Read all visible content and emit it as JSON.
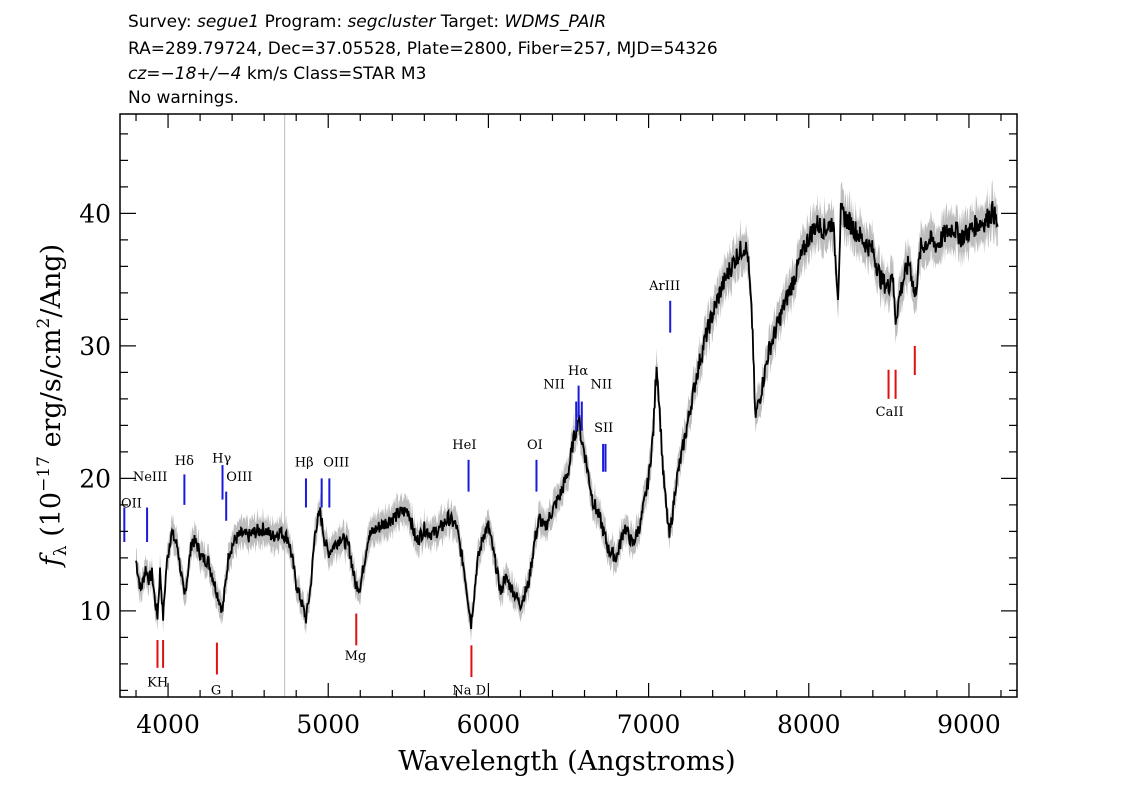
{
  "header": {
    "line1": {
      "survey_label": "Survey: ",
      "survey": "segue1",
      "program_label": " Program: ",
      "program": "segcluster",
      "target_label": " Target: ",
      "target": "WDMS_PAIR"
    },
    "line2": "RA=289.79724, Dec=37.05528, Plate=2800, Fiber=257, MJD=54326",
    "line3": {
      "cz_label": "cz",
      "cz_value": "=−18+/−4",
      "cz_unit": " km/s Class=STAR M3"
    },
    "line4": "No warnings."
  },
  "chart_data": {
    "type": "line",
    "xlabel": "Wavelength (Angstroms)",
    "ylabel_symbol": "f",
    "ylabel_sub": "λ",
    "ylabel_mid": " (10",
    "ylabel_exp": "−17",
    "ylabel_tail1": " erg/s/cm",
    "ylabel_exp2": "2",
    "ylabel_tail2": "/Ang)",
    "xlim": [
      3700,
      9300
    ],
    "ylim": [
      3.5,
      47.5
    ],
    "x_ticks": [
      4000,
      5000,
      6000,
      7000,
      8000,
      9000
    ],
    "x_tick_labels": [
      "4000",
      "5000",
      "6000",
      "7000",
      "8000",
      "9000"
    ],
    "y_ticks": [
      10,
      20,
      30,
      40
    ],
    "y_tick_labels": [
      "10",
      "20",
      "30",
      "40"
    ],
    "vertical_marker": 4728,
    "colors": {
      "spectrum": "#000000",
      "error_band": "#bdbdbd",
      "emission": "#1a1adc",
      "absorption": "#e01010",
      "marker": "#bbbbbb"
    },
    "spectrum": {
      "x": [
        3800,
        3830,
        3860,
        3880,
        3900,
        3920,
        3934,
        3950,
        3969,
        3990,
        4020,
        4060,
        4090,
        4102,
        4120,
        4150,
        4180,
        4210,
        4250,
        4300,
        4340,
        4380,
        4420,
        4460,
        4500,
        4550,
        4600,
        4650,
        4700,
        4750,
        4780,
        4800,
        4830,
        4861,
        4890,
        4920,
        4950,
        4980,
        5000,
        5040,
        5080,
        5130,
        5170,
        5200,
        5250,
        5300,
        5350,
        5400,
        5450,
        5500,
        5550,
        5600,
        5650,
        5700,
        5750,
        5800,
        5850,
        5892,
        5930,
        5970,
        6000,
        6050,
        6080,
        6100,
        6150,
        6200,
        6250,
        6290,
        6320,
        6350,
        6400,
        6450,
        6500,
        6530,
        6563,
        6580,
        6600,
        6650,
        6700,
        6750,
        6800,
        6850,
        6900,
        6950,
        7000,
        7030,
        7050,
        7070,
        7090,
        7110,
        7130,
        7150,
        7170,
        7200,
        7250,
        7300,
        7350,
        7400,
        7450,
        7500,
        7550,
        7600,
        7620,
        7650,
        7665,
        7700,
        7750,
        7800,
        7850,
        7900,
        7950,
        8000,
        8050,
        8100,
        8150,
        8183,
        8200,
        8250,
        8300,
        8350,
        8400,
        8450,
        8498,
        8520,
        8542,
        8570,
        8600,
        8630,
        8662,
        8700,
        8750,
        8800,
        8850,
        8900,
        8950,
        9000,
        9050,
        9100,
        9150,
        9180
      ],
      "y": [
        13.8,
        11.5,
        13.2,
        12.4,
        12.8,
        10.6,
        9.6,
        13.0,
        9.5,
        13.4,
        16.0,
        14.8,
        12.0,
        11.0,
        12.6,
        15.4,
        15.0,
        14.0,
        13.8,
        11.6,
        10.0,
        14.4,
        15.4,
        15.8,
        15.6,
        16.0,
        16.2,
        15.6,
        16.0,
        15.5,
        13.6,
        12.0,
        10.8,
        9.4,
        11.8,
        16.2,
        17.4,
        15.2,
        14.4,
        15.0,
        15.6,
        14.8,
        12.0,
        11.8,
        15.6,
        16.2,
        16.6,
        17.0,
        17.4,
        17.6,
        15.2,
        16.2,
        15.8,
        16.2,
        17.0,
        16.4,
        13.0,
        9.0,
        13.6,
        15.8,
        16.4,
        13.2,
        11.2,
        12.6,
        11.6,
        10.5,
        12.0,
        15.4,
        17.0,
        16.2,
        17.6,
        18.8,
        20.6,
        22.8,
        24.6,
        23.0,
        22.0,
        18.4,
        16.8,
        14.6,
        14.0,
        16.4,
        15.0,
        16.6,
        20.0,
        23.6,
        28.8,
        25.0,
        20.6,
        17.8,
        15.6,
        17.4,
        19.6,
        21.4,
        24.6,
        27.8,
        30.4,
        32.4,
        34.2,
        35.6,
        36.8,
        37.6,
        36.8,
        31.0,
        24.6,
        26.4,
        29.6,
        31.4,
        33.2,
        34.8,
        36.6,
        38.2,
        39.2,
        38.8,
        39.4,
        34.0,
        40.0,
        39.4,
        38.6,
        37.8,
        37.2,
        35.0,
        34.4,
        35.8,
        32.0,
        34.0,
        35.4,
        36.4,
        33.6,
        37.4,
        38.0,
        37.6,
        38.4,
        39.0,
        38.2,
        38.6,
        39.2,
        39.4,
        40.2,
        39.0
      ]
    },
    "emission_lines": [
      {
        "label": "OII",
        "wl": 3727,
        "y1": 15.2,
        "y2": 17.8
      },
      {
        "label": "NeIII",
        "wl": 3869,
        "y1": 15.2,
        "y2": 17.8
      },
      {
        "label": "Hδ",
        "wl": 4102,
        "y1": 18.0,
        "y2": 20.3
      },
      {
        "label": "Hγ",
        "wl": 4340,
        "y1": 18.4,
        "y2": 21.0
      },
      {
        "label": "OIII",
        "wl": 4363,
        "y1": 16.8,
        "y2": 19.0
      },
      {
        "label": "Hβ",
        "wl": 4861,
        "y1": 17.8,
        "y2": 20.0
      },
      {
        "label": "OIII",
        "wl": 4959,
        "y1": 17.8,
        "y2": 20.0
      },
      {
        "label": "OIII",
        "wl": 5007,
        "y1": 17.8,
        "y2": 20.0
      },
      {
        "label": "HeI",
        "wl": 5876,
        "y1": 19.0,
        "y2": 21.4
      },
      {
        "label": "OI",
        "wl": 6300,
        "y1": 19.0,
        "y2": 21.4
      },
      {
        "label": "NII",
        "wl": 6548,
        "y1": 23.6,
        "y2": 25.8
      },
      {
        "label": "Hα",
        "wl": 6563,
        "y1": 24.6,
        "y2": 27.0
      },
      {
        "label": "NII",
        "wl": 6583,
        "y1": 23.6,
        "y2": 25.8
      },
      {
        "label": "SII",
        "wl": 6716,
        "y1": 20.5,
        "y2": 22.6
      },
      {
        "label": "SII",
        "wl": 6731,
        "y1": 20.5,
        "y2": 22.6
      },
      {
        "label": "ArIII",
        "wl": 7135,
        "y1": 31.0,
        "y2": 33.4
      }
    ],
    "emission_labels": [
      {
        "text": "OII",
        "x": 3700,
        "y": 17.8
      },
      {
        "text": "NeIII",
        "x": 3888,
        "y": 19.8
      },
      {
        "text": "Hδ",
        "x": 4102,
        "y": 21.0
      },
      {
        "text": "Hγ",
        "x": 4335,
        "y": 21.2
      },
      {
        "text": "OIII",
        "x": 4445,
        "y": 19.8
      },
      {
        "text": "Hβ",
        "x": 4850,
        "y": 20.9
      },
      {
        "text": "OIII",
        "x": 5050,
        "y": 20.9
      },
      {
        "text": "HeI",
        "x": 5850,
        "y": 22.2
      },
      {
        "text": "OI",
        "x": 6290,
        "y": 22.2
      },
      {
        "text": "NII",
        "x": 6410,
        "y": 26.8
      },
      {
        "text": "Hα",
        "x": 6560,
        "y": 27.8
      },
      {
        "text": "NII",
        "x": 6705,
        "y": 26.8
      },
      {
        "text": "SII",
        "x": 6720,
        "y": 23.5
      },
      {
        "text": "ArIII",
        "x": 7100,
        "y": 34.2
      }
    ],
    "absorption_lines": [
      {
        "label": "K",
        "wl": 3934,
        "y1": 5.7,
        "y2": 7.8
      },
      {
        "label": "H",
        "wl": 3969,
        "y1": 5.7,
        "y2": 7.8
      },
      {
        "label": "G",
        "wl": 4305,
        "y1": 5.2,
        "y2": 7.6
      },
      {
        "label": "Mg",
        "wl": 5175,
        "y1": 7.4,
        "y2": 9.8
      },
      {
        "label": "Na D",
        "wl": 5894,
        "y1": 5.0,
        "y2": 7.4
      },
      {
        "label": "CaII",
        "wl": 8498,
        "y1": 26.0,
        "y2": 28.2
      },
      {
        "label": "CaII",
        "wl": 8542,
        "y1": 26.0,
        "y2": 28.2
      },
      {
        "label": "CaII",
        "wl": 8662,
        "y1": 27.8,
        "y2": 30.0
      }
    ],
    "absorption_labels": [
      {
        "text": "KH",
        "x": 3935,
        "y": 4.3
      },
      {
        "text": "G",
        "x": 4300,
        "y": 3.7
      },
      {
        "text": "Mg",
        "x": 5170,
        "y": 6.3
      },
      {
        "text": "Na D",
        "x": 5880,
        "y": 3.7
      },
      {
        "text": "CaII",
        "x": 8505,
        "y": 24.7
      }
    ]
  }
}
